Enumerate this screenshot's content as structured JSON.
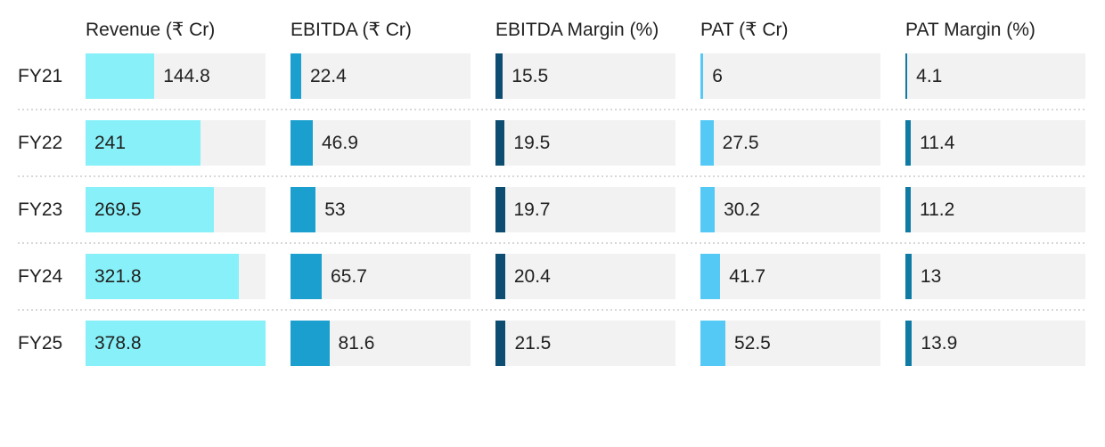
{
  "chart_data": {
    "type": "bar",
    "orientation": "horizontal",
    "title": "",
    "categories": [
      "FY21",
      "FY22",
      "FY23",
      "FY24",
      "FY25"
    ],
    "series": [
      {
        "name": "Revenue (₹ Cr)",
        "values": [
          144.8,
          241,
          269.5,
          321.8,
          378.8
        ],
        "color": "#87F0F8"
      },
      {
        "name": "EBITDA (₹ Cr)",
        "values": [
          22.4,
          46.9,
          53,
          65.7,
          81.6
        ],
        "color": "#1B9FCE"
      },
      {
        "name": "EBITDA Margin (%)",
        "values": [
          15.5,
          19.5,
          19.7,
          20.4,
          21.5
        ],
        "color": "#0D4D72"
      },
      {
        "name": "PAT (₹ Cr)",
        "values": [
          6,
          27.5,
          30.2,
          41.7,
          52.5
        ],
        "color": "#55C9F5"
      },
      {
        "name": "PAT Margin (%)",
        "values": [
          4.1,
          11.4,
          11.2,
          13,
          13.9
        ],
        "color": "#0F7BA5"
      }
    ],
    "scale_max": 378.8,
    "track_color": "#F2F2F2",
    "text_color": "#212121",
    "separator_color": "#D8D8D8",
    "grid": false,
    "legend_position": "none",
    "axis_labels_shown": false
  }
}
